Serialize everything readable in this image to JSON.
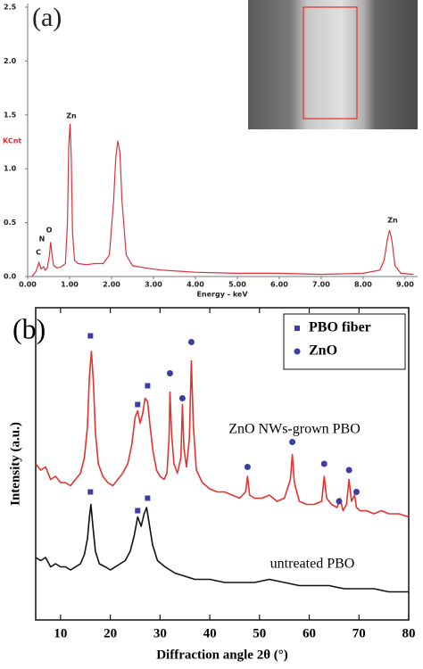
{
  "chart_data": [
    {
      "type": "line",
      "panel": "(a)",
      "xlabel": "Energy - keV",
      "ylabel": "KCnt",
      "color": "#e0303a",
      "x": [
        0.1,
        0.2,
        0.27,
        0.32,
        0.38,
        0.42,
        0.47,
        0.52,
        0.55,
        0.58,
        0.62,
        0.7,
        0.8,
        0.9,
        0.95,
        0.98,
        1.01,
        1.04,
        1.07,
        1.12,
        1.2,
        1.4,
        1.6,
        1.8,
        1.95,
        2.05,
        2.1,
        2.15,
        2.2,
        2.25,
        2.35,
        2.5,
        2.8,
        3.2,
        3.6,
        4.0,
        5.0,
        6.0,
        7.0,
        8.0,
        8.4,
        8.5,
        8.58,
        8.63,
        8.68,
        8.76,
        8.9,
        9.2
      ],
      "values": [
        0.0,
        0.05,
        0.13,
        0.07,
        0.09,
        0.06,
        0.08,
        0.2,
        0.32,
        0.2,
        0.1,
        0.08,
        0.09,
        0.12,
        0.5,
        1.2,
        1.42,
        1.1,
        0.4,
        0.15,
        0.12,
        0.11,
        0.12,
        0.12,
        0.2,
        0.7,
        1.1,
        1.26,
        1.15,
        0.7,
        0.2,
        0.1,
        0.08,
        0.06,
        0.05,
        0.04,
        0.03,
        0.03,
        0.02,
        0.03,
        0.06,
        0.15,
        0.35,
        0.43,
        0.35,
        0.1,
        0.03,
        0.02
      ],
      "annotations": [
        "C",
        "N",
        "O",
        "Zn",
        "Zn"
      ],
      "xlim": [
        0,
        9.3
      ],
      "xticks": [
        {
          "value": 0,
          "label": "0.00"
        },
        {
          "value": 1,
          "label": "1.00"
        },
        {
          "value": 2,
          "label": "2.00"
        },
        {
          "value": 3,
          "label": "3.00"
        },
        {
          "value": 4,
          "label": "4.00"
        },
        {
          "value": 5,
          "label": "5.00"
        },
        {
          "value": 6,
          "label": "6.00"
        },
        {
          "value": 7,
          "label": "7.00"
        },
        {
          "value": 8,
          "label": "8.00"
        },
        {
          "value": 9,
          "label": "9.00"
        }
      ],
      "ylim": [
        0,
        2.5
      ],
      "yticks": [
        {
          "value": 0,
          "label": "0.0"
        },
        {
          "value": 0.5,
          "label": "0.5"
        },
        {
          "value": 1,
          "label": "1.0"
        },
        {
          "value": 1.5,
          "label": "1.5"
        },
        {
          "value": 2,
          "label": "2.0"
        },
        {
          "value": 2.5,
          "label": "2.5"
        }
      ]
    },
    {
      "type": "line",
      "panel": "(b)",
      "xlabel": "Diffraction angle 2θ (°)",
      "ylabel": "Intensity (a.u.)",
      "xlim": [
        5,
        80
      ],
      "xticks": [
        10,
        20,
        30,
        40,
        50,
        60,
        70,
        80
      ],
      "ylim": [
        0,
        100
      ],
      "series": [
        {
          "name": "ZnO NWs-grown PBO",
          "color": "#e8312f",
          "x": [
            5,
            6,
            7,
            8,
            9,
            10,
            11,
            12,
            13,
            14,
            14.8,
            15.4,
            15.8,
            16.2,
            16.6,
            17,
            17.6,
            18.5,
            19.5,
            20.5,
            21.5,
            22.5,
            23.5,
            24.3,
            25,
            25.5,
            26,
            26.5,
            27,
            27.5,
            28,
            28.6,
            29.3,
            30,
            30.8,
            31.4,
            31.8,
            32,
            32.3,
            32.8,
            33.5,
            34.2,
            34.5,
            34.8,
            35.3,
            35.9,
            36.3,
            36.7,
            37.3,
            38.5,
            40,
            41.5,
            43,
            44.5,
            46,
            47.2,
            47.6,
            48,
            49,
            50.5,
            52,
            53.5,
            55,
            56.2,
            56.6,
            57,
            58,
            59.5,
            61,
            62.5,
            63,
            63.5,
            64.5,
            65.6,
            66.2,
            66.8,
            67.5,
            68,
            68.5,
            69.1,
            69.5,
            70.2,
            71.5,
            73,
            74.5,
            76,
            78,
            80
          ],
          "values": [
            50,
            48,
            49,
            45,
            46,
            44,
            44,
            43,
            45,
            47,
            52,
            62,
            78,
            86,
            76,
            60,
            50,
            46,
            44,
            43,
            45,
            47,
            50,
            56,
            65,
            67,
            63,
            66,
            71,
            70,
            62,
            54,
            48,
            46,
            45,
            47,
            58,
            73,
            60,
            50,
            47,
            52,
            69,
            55,
            49,
            58,
            83,
            62,
            48,
            44,
            42,
            41,
            41,
            40,
            39,
            41,
            46,
            40,
            39,
            39,
            40,
            38,
            39,
            45,
            53,
            44,
            38,
            37,
            37,
            38,
            46,
            39,
            37,
            36,
            39,
            35,
            37,
            45,
            38,
            40,
            36,
            35,
            35,
            34,
            35,
            34,
            34,
            33
          ]
        },
        {
          "name": "untreated PBO",
          "color": "#111111",
          "x": [
            5,
            6,
            7,
            8,
            9,
            10,
            11,
            12,
            13,
            14,
            14.8,
            15.4,
            15.8,
            16.1,
            16.5,
            17,
            17.8,
            19,
            20,
            21,
            22,
            23,
            24,
            24.8,
            25.5,
            26.2,
            26.8,
            27.3,
            27.8,
            28.5,
            29.5,
            31,
            33,
            35,
            37,
            40,
            43,
            46,
            49,
            52,
            55,
            58,
            61,
            64,
            67,
            70,
            73,
            76,
            80
          ],
          "values": [
            20,
            19,
            20,
            17,
            18,
            17,
            17,
            16,
            17,
            18,
            21,
            26,
            33,
            37,
            30,
            22,
            18,
            17,
            16,
            17,
            18,
            19,
            22,
            27,
            33,
            30,
            34,
            36,
            31,
            24,
            19,
            17,
            15,
            14,
            13,
            13,
            12,
            12,
            12,
            13,
            12,
            11,
            11,
            11,
            10,
            10,
            10,
            9,
            9
          ]
        }
      ],
      "markers": [
        {
          "name": "PBO fiber",
          "shape": "square",
          "color": "#3b3fa0",
          "x": [
            16,
            25.5,
            27.5,
            16,
            25.5,
            27.5
          ],
          "y": [
            91,
            69,
            75,
            41,
            35,
            39
          ]
        },
        {
          "name": "ZnO",
          "shape": "circle",
          "color": "#3b3fa0",
          "x": [
            32,
            34.5,
            36.3,
            47.6,
            56.6,
            63,
            66,
            68,
            69.5
          ],
          "y": [
            79,
            71,
            89,
            49,
            57,
            50,
            38,
            48,
            41
          ]
        }
      ]
    }
  ]
}
